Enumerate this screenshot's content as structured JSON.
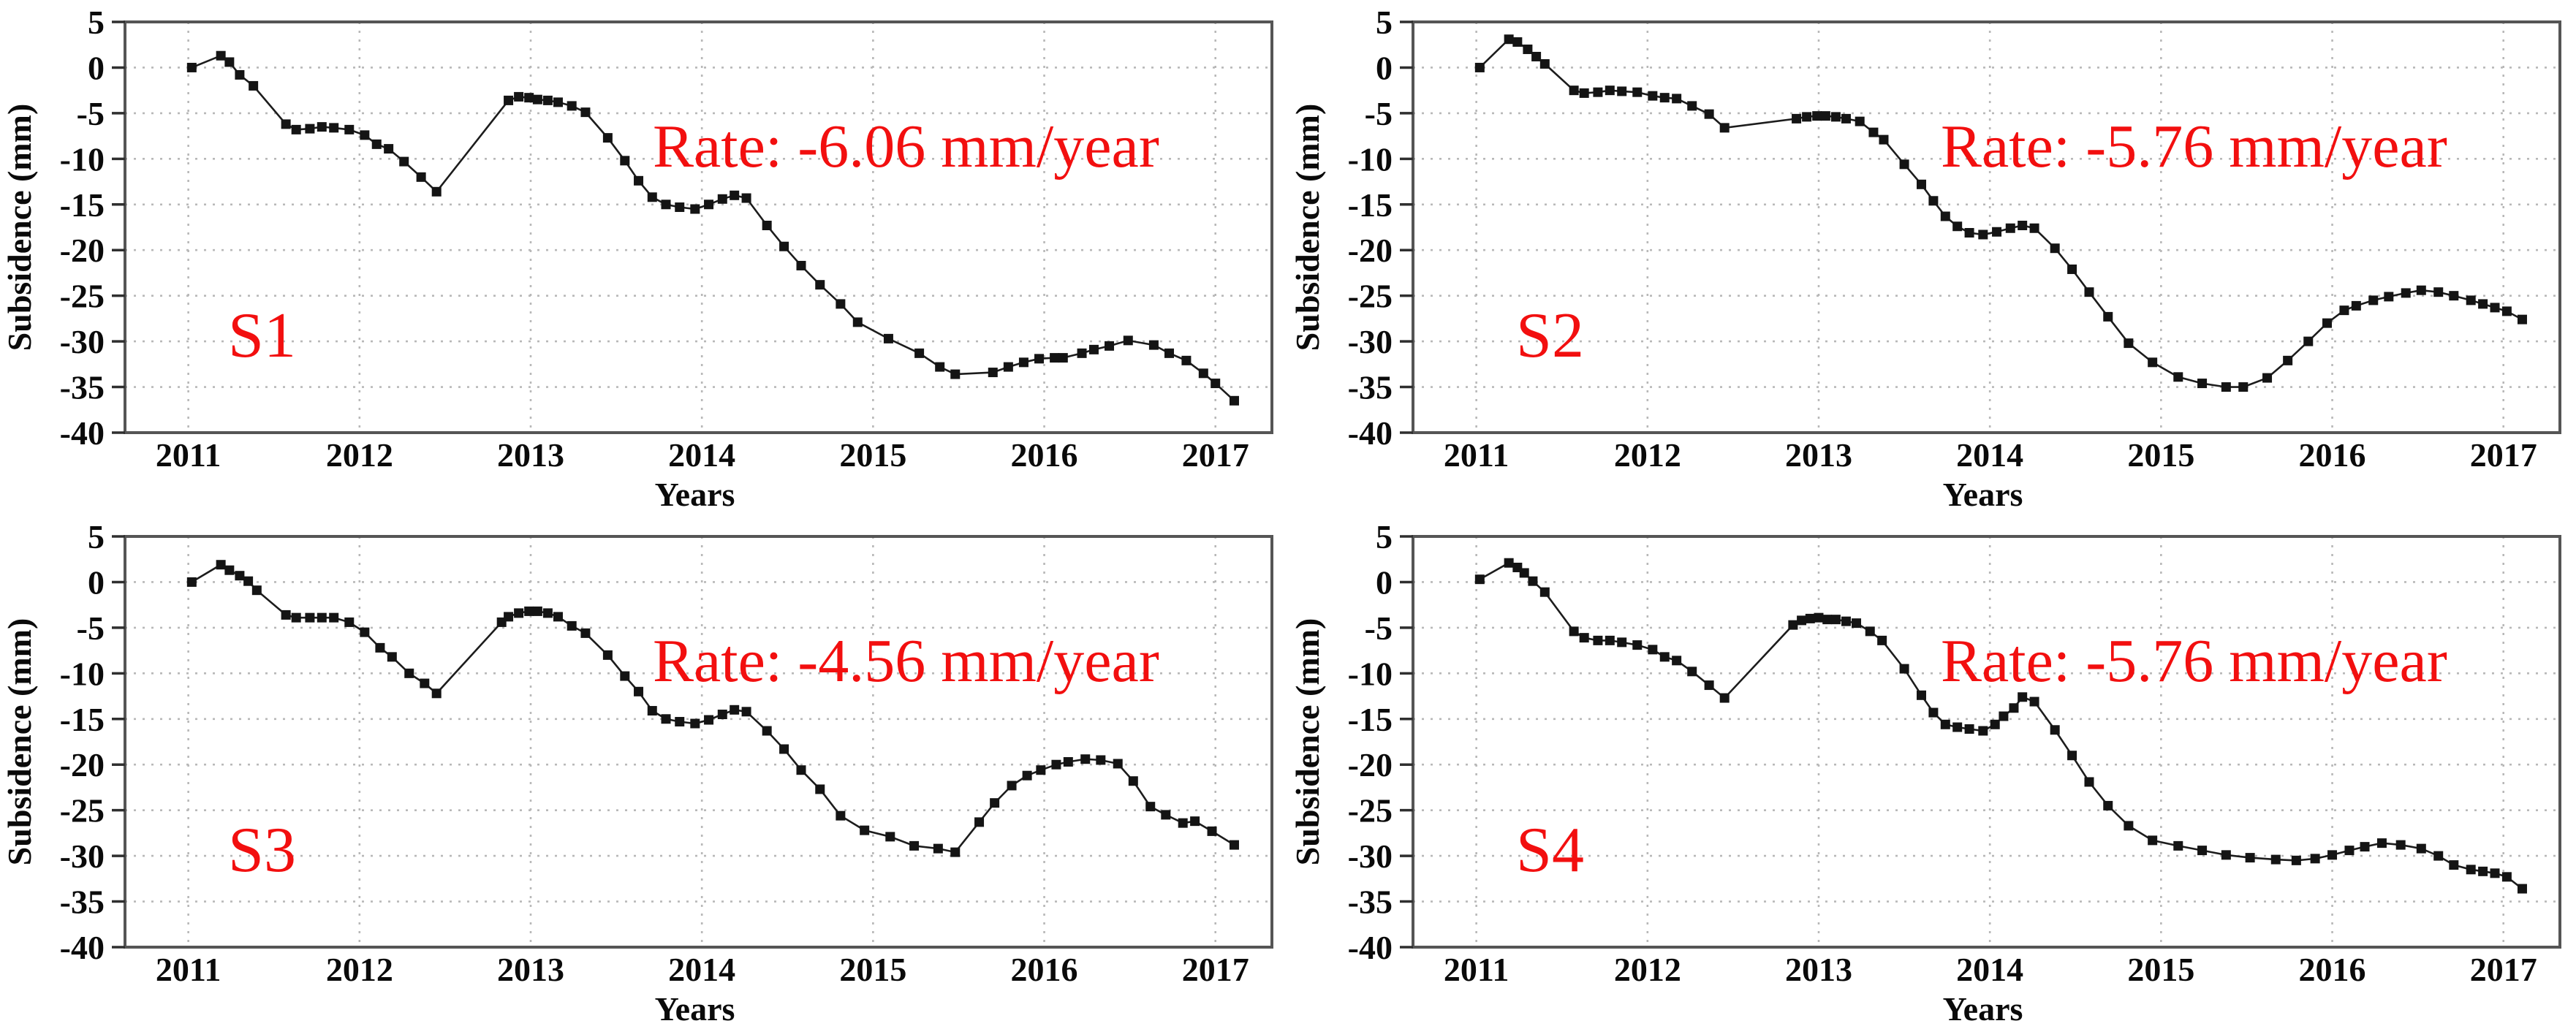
{
  "page": {
    "background": "#ffffff",
    "description_colors": {
      "annotation_red": "#f20f0f",
      "series_line": "#1c1c1c",
      "marker_fill": "#141414",
      "grid_gray": "#b8b8b8",
      "frame_gray": "#555555",
      "tick_text": "#0a0a0a"
    }
  },
  "chart_data": [
    {
      "type": "line",
      "station": "S1",
      "rate_label": "Rate: -6.06 mm/year",
      "xlabel": "Years",
      "ylabel": "Subsidence (mm)",
      "xticks": [
        2011,
        2012,
        2013,
        2014,
        2015,
        2016,
        2017
      ],
      "yticks": [
        5,
        0,
        -5,
        -10,
        -15,
        -20,
        -25,
        -30,
        -35,
        -40
      ],
      "xlim": [
        2010.63,
        2017.33
      ],
      "ylim": [
        5,
        -40
      ],
      "grid": true,
      "marker": "square",
      "points": [
        [
          2011.02,
          0.0
        ],
        [
          2011.19,
          1.3
        ],
        [
          2011.24,
          0.6
        ],
        [
          2011.3,
          -0.8
        ],
        [
          2011.38,
          -2.0
        ],
        [
          2011.57,
          -6.2
        ],
        [
          2011.63,
          -6.8
        ],
        [
          2011.71,
          -6.7
        ],
        [
          2011.78,
          -6.5
        ],
        [
          2011.85,
          -6.6
        ],
        [
          2011.94,
          -6.8
        ],
        [
          2012.03,
          -7.4
        ],
        [
          2012.1,
          -8.4
        ],
        [
          2012.17,
          -8.9
        ],
        [
          2012.26,
          -10.3
        ],
        [
          2012.36,
          -12.0
        ],
        [
          2012.45,
          -13.6
        ],
        [
          2012.87,
          -3.6
        ],
        [
          2012.93,
          -3.2
        ],
        [
          2012.99,
          -3.3
        ],
        [
          2013.04,
          -3.5
        ],
        [
          2013.1,
          -3.6
        ],
        [
          2013.16,
          -3.8
        ],
        [
          2013.24,
          -4.2
        ],
        [
          2013.32,
          -4.9
        ],
        [
          2013.45,
          -7.7
        ],
        [
          2013.55,
          -10.2
        ],
        [
          2013.63,
          -12.4
        ],
        [
          2013.71,
          -14.2
        ],
        [
          2013.79,
          -15.0
        ],
        [
          2013.87,
          -15.3
        ],
        [
          2013.96,
          -15.5
        ],
        [
          2014.04,
          -15.0
        ],
        [
          2014.12,
          -14.4
        ],
        [
          2014.19,
          -14.0
        ],
        [
          2014.26,
          -14.3
        ],
        [
          2014.38,
          -17.3
        ],
        [
          2014.48,
          -19.6
        ],
        [
          2014.58,
          -21.7
        ],
        [
          2014.69,
          -23.8
        ],
        [
          2014.81,
          -25.9
        ],
        [
          2014.91,
          -27.9
        ],
        [
          2015.09,
          -29.7
        ],
        [
          2015.27,
          -31.3
        ],
        [
          2015.39,
          -32.8
        ],
        [
          2015.48,
          -33.6
        ],
        [
          2015.7,
          -33.4
        ],
        [
          2015.79,
          -32.8
        ],
        [
          2015.88,
          -32.3
        ],
        [
          2015.97,
          -31.9
        ],
        [
          2016.06,
          -31.8
        ],
        [
          2016.11,
          -31.8
        ],
        [
          2016.22,
          -31.3
        ],
        [
          2016.29,
          -30.9
        ],
        [
          2016.38,
          -30.5
        ],
        [
          2016.49,
          -29.9
        ],
        [
          2016.64,
          -30.4
        ],
        [
          2016.73,
          -31.3
        ],
        [
          2016.83,
          -32.1
        ],
        [
          2016.93,
          -33.5
        ],
        [
          2017.0,
          -34.6
        ],
        [
          2017.11,
          -36.5
        ]
      ]
    },
    {
      "type": "line",
      "station": "S2",
      "rate_label": "Rate: -5.76 mm/year",
      "xlabel": "Years",
      "ylabel": "Subsidence (mm)",
      "xticks": [
        2011,
        2012,
        2013,
        2014,
        2015,
        2016,
        2017
      ],
      "yticks": [
        5,
        0,
        -5,
        -10,
        -15,
        -20,
        -25,
        -30,
        -35,
        -40
      ],
      "xlim": [
        2010.63,
        2017.33
      ],
      "ylim": [
        5,
        -40
      ],
      "grid": true,
      "marker": "square",
      "points": [
        [
          2011.02,
          0.0
        ],
        [
          2011.19,
          3.1
        ],
        [
          2011.24,
          2.8
        ],
        [
          2011.3,
          2.0
        ],
        [
          2011.35,
          1.2
        ],
        [
          2011.4,
          0.4
        ],
        [
          2011.57,
          -2.5
        ],
        [
          2011.63,
          -2.8
        ],
        [
          2011.71,
          -2.7
        ],
        [
          2011.78,
          -2.5
        ],
        [
          2011.85,
          -2.6
        ],
        [
          2011.94,
          -2.7
        ],
        [
          2012.03,
          -3.1
        ],
        [
          2012.1,
          -3.3
        ],
        [
          2012.17,
          -3.4
        ],
        [
          2012.26,
          -4.2
        ],
        [
          2012.36,
          -5.1
        ],
        [
          2012.45,
          -6.6
        ],
        [
          2012.87,
          -5.6
        ],
        [
          2012.93,
          -5.4
        ],
        [
          2012.99,
          -5.3
        ],
        [
          2013.04,
          -5.3
        ],
        [
          2013.1,
          -5.4
        ],
        [
          2013.16,
          -5.6
        ],
        [
          2013.24,
          -5.9
        ],
        [
          2013.32,
          -7.1
        ],
        [
          2013.38,
          -7.9
        ],
        [
          2013.5,
          -10.6
        ],
        [
          2013.6,
          -12.8
        ],
        [
          2013.67,
          -14.6
        ],
        [
          2013.74,
          -16.3
        ],
        [
          2013.81,
          -17.4
        ],
        [
          2013.88,
          -18.1
        ],
        [
          2013.96,
          -18.3
        ],
        [
          2014.04,
          -18.0
        ],
        [
          2014.12,
          -17.6
        ],
        [
          2014.19,
          -17.3
        ],
        [
          2014.26,
          -17.6
        ],
        [
          2014.38,
          -19.8
        ],
        [
          2014.48,
          -22.1
        ],
        [
          2014.58,
          -24.6
        ],
        [
          2014.69,
          -27.3
        ],
        [
          2014.81,
          -30.2
        ],
        [
          2014.95,
          -32.3
        ],
        [
          2015.1,
          -33.9
        ],
        [
          2015.24,
          -34.6
        ],
        [
          2015.38,
          -35.0
        ],
        [
          2015.48,
          -35.0
        ],
        [
          2015.62,
          -34.0
        ],
        [
          2015.74,
          -32.1
        ],
        [
          2015.86,
          -30.0
        ],
        [
          2015.97,
          -28.0
        ],
        [
          2016.07,
          -26.6
        ],
        [
          2016.14,
          -26.1
        ],
        [
          2016.24,
          -25.5
        ],
        [
          2016.33,
          -25.1
        ],
        [
          2016.43,
          -24.7
        ],
        [
          2016.52,
          -24.4
        ],
        [
          2016.62,
          -24.6
        ],
        [
          2016.71,
          -25.0
        ],
        [
          2016.81,
          -25.5
        ],
        [
          2016.88,
          -25.9
        ],
        [
          2016.95,
          -26.3
        ],
        [
          2017.02,
          -26.7
        ],
        [
          2017.11,
          -27.6
        ]
      ]
    },
    {
      "type": "line",
      "station": "S3",
      "rate_label": "Rate: -4.56 mm/year",
      "xlabel": "Years",
      "ylabel": "Subsidence (mm)",
      "xticks": [
        2011,
        2012,
        2013,
        2014,
        2015,
        2016,
        2017
      ],
      "yticks": [
        5,
        0,
        -5,
        -10,
        -15,
        -20,
        -25,
        -30,
        -35,
        -40
      ],
      "xlim": [
        2010.63,
        2017.33
      ],
      "ylim": [
        5,
        -40
      ],
      "grid": true,
      "marker": "square",
      "points": [
        [
          2011.02,
          0.0
        ],
        [
          2011.19,
          1.9
        ],
        [
          2011.24,
          1.3
        ],
        [
          2011.3,
          0.7
        ],
        [
          2011.35,
          0.1
        ],
        [
          2011.4,
          -0.9
        ],
        [
          2011.57,
          -3.6
        ],
        [
          2011.63,
          -3.9
        ],
        [
          2011.71,
          -3.9
        ],
        [
          2011.78,
          -3.9
        ],
        [
          2011.85,
          -3.9
        ],
        [
          2011.94,
          -4.4
        ],
        [
          2012.03,
          -5.5
        ],
        [
          2012.12,
          -7.2
        ],
        [
          2012.19,
          -8.2
        ],
        [
          2012.29,
          -10.0
        ],
        [
          2012.38,
          -11.1
        ],
        [
          2012.45,
          -12.2
        ],
        [
          2012.83,
          -4.4
        ],
        [
          2012.87,
          -3.8
        ],
        [
          2012.93,
          -3.4
        ],
        [
          2012.99,
          -3.2
        ],
        [
          2013.04,
          -3.2
        ],
        [
          2013.1,
          -3.4
        ],
        [
          2013.16,
          -3.8
        ],
        [
          2013.24,
          -4.8
        ],
        [
          2013.32,
          -5.6
        ],
        [
          2013.45,
          -8.0
        ],
        [
          2013.55,
          -10.3
        ],
        [
          2013.63,
          -12.0
        ],
        [
          2013.71,
          -14.1
        ],
        [
          2013.79,
          -15.0
        ],
        [
          2013.87,
          -15.3
        ],
        [
          2013.96,
          -15.5
        ],
        [
          2014.04,
          -15.1
        ],
        [
          2014.12,
          -14.5
        ],
        [
          2014.19,
          -14.0
        ],
        [
          2014.26,
          -14.2
        ],
        [
          2014.38,
          -16.3
        ],
        [
          2014.48,
          -18.3
        ],
        [
          2014.58,
          -20.6
        ],
        [
          2014.69,
          -22.7
        ],
        [
          2014.81,
          -25.6
        ],
        [
          2014.95,
          -27.2
        ],
        [
          2015.1,
          -27.9
        ],
        [
          2015.24,
          -28.9
        ],
        [
          2015.38,
          -29.2
        ],
        [
          2015.48,
          -29.6
        ],
        [
          2015.62,
          -26.3
        ],
        [
          2015.71,
          -24.2
        ],
        [
          2015.81,
          -22.3
        ],
        [
          2015.9,
          -21.2
        ],
        [
          2015.98,
          -20.6
        ],
        [
          2016.07,
          -20.0
        ],
        [
          2016.14,
          -19.7
        ],
        [
          2016.24,
          -19.4
        ],
        [
          2016.33,
          -19.5
        ],
        [
          2016.43,
          -19.9
        ],
        [
          2016.52,
          -21.8
        ],
        [
          2016.62,
          -24.6
        ],
        [
          2016.71,
          -25.5
        ],
        [
          2016.81,
          -26.4
        ],
        [
          2016.88,
          -26.2
        ],
        [
          2016.98,
          -27.3
        ],
        [
          2017.11,
          -28.8
        ]
      ]
    },
    {
      "type": "line",
      "station": "S4",
      "rate_label": "Rate: -5.76 mm/year",
      "xlabel": "Years",
      "ylabel": "Subsidence (mm)",
      "xticks": [
        2011,
        2012,
        2013,
        2014,
        2015,
        2016,
        2017
      ],
      "yticks": [
        5,
        0,
        -5,
        -10,
        -15,
        -20,
        -25,
        -30,
        -35,
        -40
      ],
      "xlim": [
        2010.63,
        2017.33
      ],
      "ylim": [
        5,
        -40
      ],
      "grid": true,
      "marker": "square",
      "points": [
        [
          2011.02,
          0.3
        ],
        [
          2011.19,
          2.1
        ],
        [
          2011.24,
          1.6
        ],
        [
          2011.28,
          1.0
        ],
        [
          2011.33,
          0.1
        ],
        [
          2011.4,
          -1.1
        ],
        [
          2011.57,
          -5.4
        ],
        [
          2011.63,
          -6.1
        ],
        [
          2011.71,
          -6.4
        ],
        [
          2011.78,
          -6.4
        ],
        [
          2011.85,
          -6.6
        ],
        [
          2011.94,
          -6.9
        ],
        [
          2012.03,
          -7.4
        ],
        [
          2012.1,
          -8.2
        ],
        [
          2012.17,
          -8.6
        ],
        [
          2012.26,
          -9.8
        ],
        [
          2012.36,
          -11.3
        ],
        [
          2012.45,
          -12.7
        ],
        [
          2012.85,
          -4.7
        ],
        [
          2012.9,
          -4.2
        ],
        [
          2012.95,
          -4.0
        ],
        [
          2013.0,
          -3.9
        ],
        [
          2013.05,
          -4.1
        ],
        [
          2013.1,
          -4.1
        ],
        [
          2013.16,
          -4.3
        ],
        [
          2013.22,
          -4.5
        ],
        [
          2013.3,
          -5.4
        ],
        [
          2013.37,
          -6.4
        ],
        [
          2013.5,
          -9.5
        ],
        [
          2013.6,
          -12.4
        ],
        [
          2013.67,
          -14.3
        ],
        [
          2013.74,
          -15.6
        ],
        [
          2013.81,
          -15.9
        ],
        [
          2013.88,
          -16.1
        ],
        [
          2013.96,
          -16.3
        ],
        [
          2014.03,
          -15.6
        ],
        [
          2014.08,
          -14.7
        ],
        [
          2014.14,
          -13.8
        ],
        [
          2014.19,
          -12.6
        ],
        [
          2014.26,
          -13.1
        ],
        [
          2014.38,
          -16.2
        ],
        [
          2014.48,
          -19.0
        ],
        [
          2014.58,
          -21.9
        ],
        [
          2014.69,
          -24.5
        ],
        [
          2014.81,
          -26.7
        ],
        [
          2014.95,
          -28.3
        ],
        [
          2015.1,
          -28.9
        ],
        [
          2015.24,
          -29.4
        ],
        [
          2015.38,
          -29.9
        ],
        [
          2015.52,
          -30.2
        ],
        [
          2015.67,
          -30.4
        ],
        [
          2015.79,
          -30.5
        ],
        [
          2015.9,
          -30.3
        ],
        [
          2016.0,
          -29.9
        ],
        [
          2016.1,
          -29.4
        ],
        [
          2016.19,
          -29.0
        ],
        [
          2016.29,
          -28.6
        ],
        [
          2016.4,
          -28.8
        ],
        [
          2016.52,
          -29.2
        ],
        [
          2016.62,
          -30.0
        ],
        [
          2016.71,
          -31.0
        ],
        [
          2016.81,
          -31.5
        ],
        [
          2016.88,
          -31.7
        ],
        [
          2016.95,
          -31.9
        ],
        [
          2017.02,
          -32.3
        ],
        [
          2017.11,
          -33.6
        ]
      ]
    }
  ]
}
